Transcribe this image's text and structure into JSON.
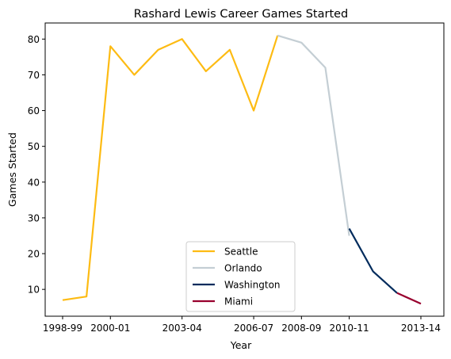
{
  "chart_data": {
    "type": "line",
    "title": "Rashard Lewis Career Games Started",
    "xlabel": "Year",
    "ylabel": "Games Started",
    "x_tick_labels": [
      "1998-99",
      "2000-01",
      "2003-04",
      "2006-07",
      "2008-09",
      "2010-11",
      "2013-14"
    ],
    "x_tick_index": [
      0,
      2,
      5,
      8,
      10,
      12,
      15
    ],
    "ylim": [
      2.5,
      84.5
    ],
    "y_ticks": [
      10,
      20,
      30,
      40,
      50,
      60,
      70,
      80
    ],
    "grid": false,
    "legend_position": "lower center",
    "series": [
      {
        "name": "Seattle",
        "color": "#FDBB13",
        "points": [
          {
            "x": 0,
            "y": 7
          },
          {
            "x": 1,
            "y": 8
          },
          {
            "x": 2,
            "y": 78
          },
          {
            "x": 3,
            "y": 70
          },
          {
            "x": 4,
            "y": 77
          },
          {
            "x": 5,
            "y": 80
          },
          {
            "x": 6,
            "y": 71
          },
          {
            "x": 7,
            "y": 77
          },
          {
            "x": 8,
            "y": 60
          },
          {
            "x": 9,
            "y": 81
          }
        ]
      },
      {
        "name": "Orlando",
        "color": "#C4CED4",
        "points": [
          {
            "x": 9,
            "y": 81
          },
          {
            "x": 10,
            "y": 79
          },
          {
            "x": 11,
            "y": 72
          },
          {
            "x": 12,
            "y": 25
          }
        ]
      },
      {
        "name": "Washington",
        "color": "#002B5C",
        "points": [
          {
            "x": 12,
            "y": 27
          },
          {
            "x": 13,
            "y": 15
          },
          {
            "x": 14,
            "y": 9
          }
        ]
      },
      {
        "name": "Miami",
        "color": "#98002E",
        "points": [
          {
            "x": 14,
            "y": 9
          },
          {
            "x": 15,
            "y": 6
          }
        ]
      }
    ]
  }
}
